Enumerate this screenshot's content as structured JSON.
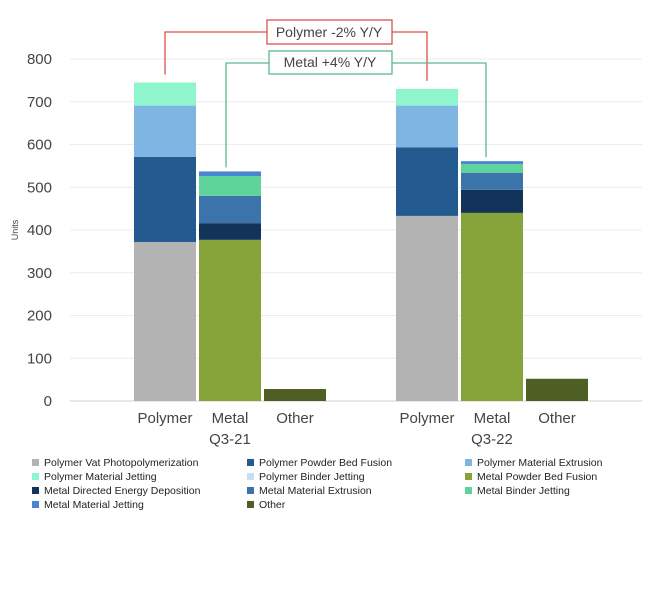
{
  "chart_data": {
    "type": "bar",
    "stacked": true,
    "ylabel": "Units",
    "ylim": [
      0,
      800
    ],
    "yticks": [
      0,
      100,
      200,
      300,
      400,
      500,
      600,
      700,
      800
    ],
    "grid": true,
    "groups": [
      "Q3-21",
      "Q3-22"
    ],
    "categories": [
      "Polymer",
      "Metal",
      "Other"
    ],
    "annotations": [
      {
        "text": "Polymer -2% Y/Y",
        "color": "#d9534f"
      },
      {
        "text": "Metal +4% Y/Y",
        "color": "#5cb88a"
      }
    ],
    "series": [
      {
        "name": "Polymer Vat Photopolymerization",
        "color": "#b3b3b3",
        "values": {
          "Q3-21": {
            "Polymer": 372
          },
          "Q3-22": {
            "Polymer": 433
          }
        }
      },
      {
        "name": "Polymer Powder Bed Fusion",
        "color": "#235a8f",
        "values": {
          "Q3-21": {
            "Polymer": 199
          },
          "Q3-22": {
            "Polymer": 160
          }
        }
      },
      {
        "name": "Polymer Material Extrusion",
        "color": "#7fb5e2",
        "values": {
          "Q3-21": {
            "Polymer": 120
          },
          "Q3-22": {
            "Polymer": 98
          }
        }
      },
      {
        "name": "Polymer Material Jetting",
        "color": "#8ef5cc",
        "values": {
          "Q3-21": {
            "Polymer": 54
          },
          "Q3-22": {
            "Polymer": 39
          }
        }
      },
      {
        "name": "Polymer Binder Jetting",
        "color": "#c9dff0",
        "values": {
          "Q3-21": {
            "Polymer": 0
          },
          "Q3-22": {
            "Polymer": 0
          }
        }
      },
      {
        "name": "Metal Powder Bed Fusion",
        "color": "#86a43a",
        "values": {
          "Q3-21": {
            "Metal": 377
          },
          "Q3-22": {
            "Metal": 440
          }
        }
      },
      {
        "name": "Metal Directed Energy Deposition",
        "color": "#12335a",
        "values": {
          "Q3-21": {
            "Metal": 39
          },
          "Q3-22": {
            "Metal": 54
          }
        }
      },
      {
        "name": "Metal Material Extrusion",
        "color": "#3a74ab",
        "values": {
          "Q3-21": {
            "Metal": 64
          },
          "Q3-22": {
            "Metal": 40
          }
        }
      },
      {
        "name": "Metal Binder Jetting",
        "color": "#5fd49a",
        "values": {
          "Q3-21": {
            "Metal": 46
          },
          "Q3-22": {
            "Metal": 20
          }
        }
      },
      {
        "name": "Metal Material Jetting",
        "color": "#4a86d0",
        "values": {
          "Q3-21": {
            "Metal": 11
          },
          "Q3-22": {
            "Metal": 7
          }
        }
      },
      {
        "name": "Other",
        "color": "#4f5e22",
        "values": {
          "Q3-21": {
            "Other": 28
          },
          "Q3-22": {
            "Other": 52
          }
        }
      }
    ],
    "legend_position": "bottom"
  }
}
